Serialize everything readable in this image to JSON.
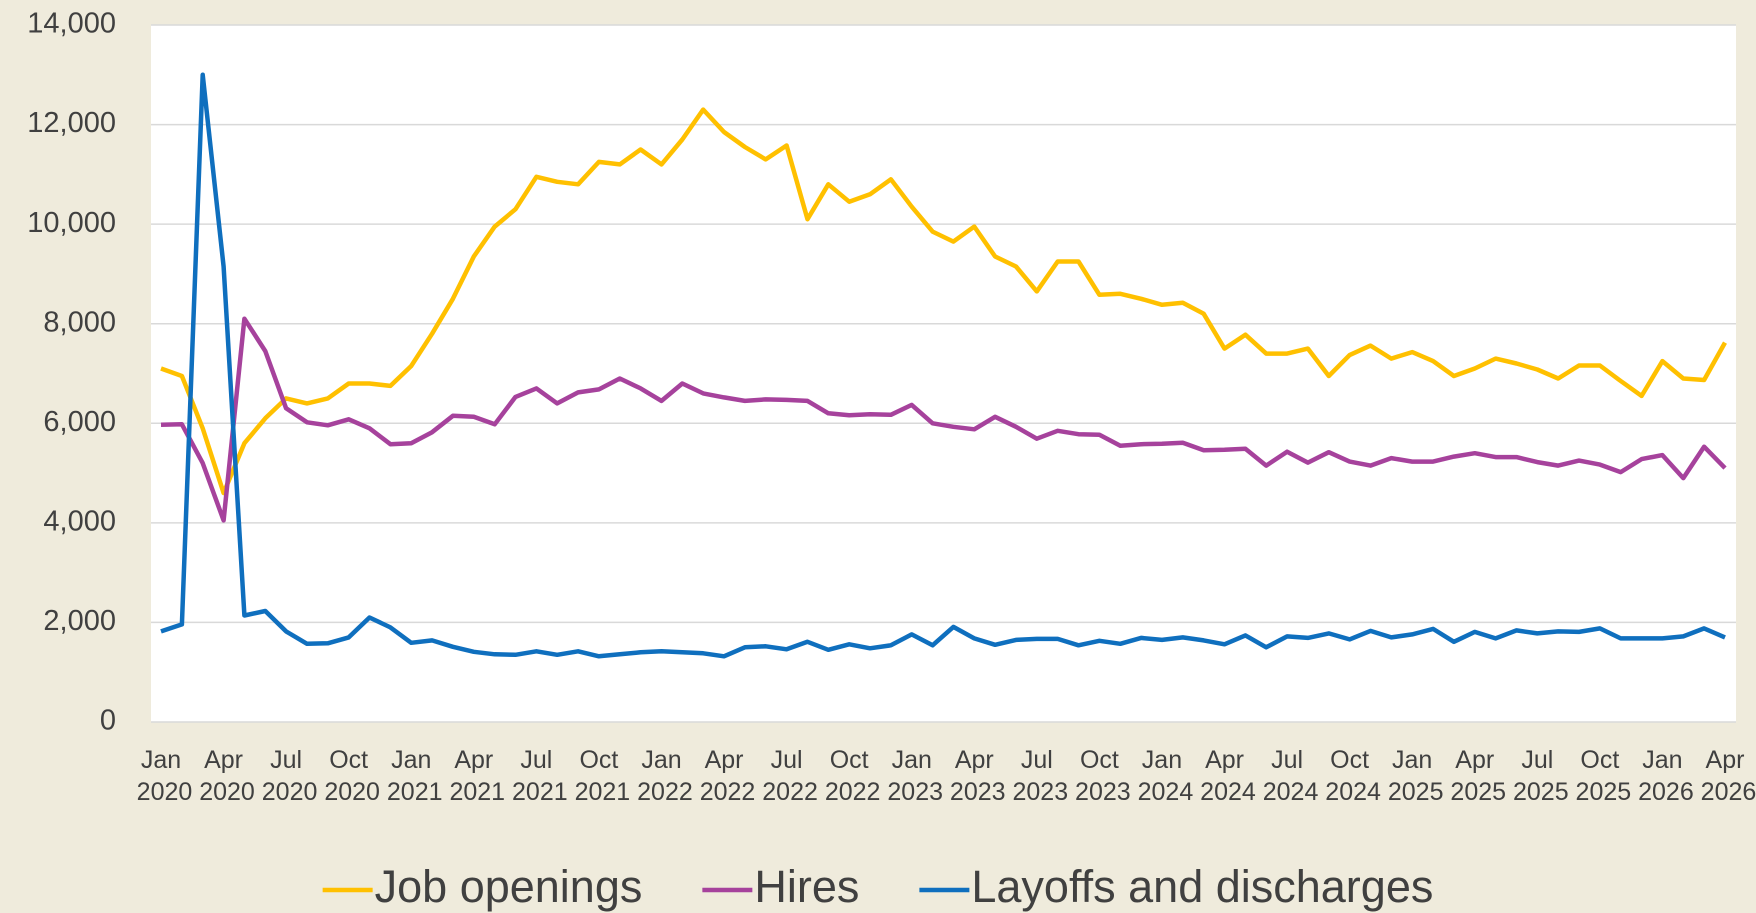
{
  "chart_data": {
    "type": "line",
    "categories": [
      "Jan 2020",
      null,
      null,
      "Apr 2020",
      null,
      null,
      "Jul 2020",
      null,
      null,
      "Oct 2020",
      null,
      null,
      "Jan 2021",
      null,
      null,
      "Apr 2021",
      null,
      null,
      "Jul 2021",
      null,
      null,
      "Oct 2021",
      null,
      null,
      "Jan 2022",
      null,
      null,
      "Apr 2022",
      null,
      null,
      "Jul 2022",
      null,
      null,
      "Oct 2022",
      null,
      null,
      "Jan 2023",
      null,
      null,
      "Apr 2023",
      null,
      null,
      "Jul 2023",
      null,
      null,
      "Oct 2023",
      null,
      null,
      "Jan 2024",
      null,
      null,
      "Apr 2024",
      null,
      null,
      "Jul 2024",
      null,
      null,
      "Oct 2024",
      null,
      null,
      "Jan 2025",
      null,
      null,
      "Apr 2025",
      null,
      null,
      "Jul 2025",
      null,
      null,
      "Oct 2025",
      null,
      null,
      "Jan 2026",
      null,
      null,
      "Apr 2026"
    ],
    "series": [
      {
        "name": "Job openings",
        "color": "#ffc000",
        "values": [
          7100,
          6950,
          5900,
          4600,
          5600,
          6100,
          6500,
          6400,
          6500,
          6800,
          6800,
          6750,
          7150,
          7800,
          8500,
          9350,
          9950,
          10300,
          10950,
          10850,
          10800,
          11250,
          11200,
          11500,
          11200,
          11700,
          12300,
          11850,
          11550,
          11300,
          11580,
          10100,
          10800,
          10450,
          10600,
          10900,
          10350,
          9850,
          9650,
          9950,
          9350,
          9150,
          8650,
          9250,
          9250,
          8580,
          8600,
          8500,
          8380,
          8420,
          8200,
          7500,
          7780,
          7400,
          7400,
          7500,
          6950,
          7370,
          7560,
          7300,
          7430,
          7250,
          6950,
          7100,
          7300,
          7200,
          7080,
          6900,
          7160,
          7160,
          6850,
          6550,
          7250,
          6900,
          6870,
          7620
        ]
      },
      {
        "name": "Hires",
        "color": "#a6429c",
        "values": [
          5970,
          5980,
          5200,
          4050,
          8100,
          7450,
          6300,
          6020,
          5960,
          6080,
          5900,
          5580,
          5600,
          5820,
          6150,
          6130,
          5980,
          6530,
          6700,
          6400,
          6620,
          6680,
          6900,
          6700,
          6450,
          6800,
          6600,
          6520,
          6450,
          6480,
          6470,
          6450,
          6200,
          6160,
          6180,
          6170,
          6370,
          6000,
          5930,
          5880,
          6130,
          5930,
          5690,
          5850,
          5780,
          5770,
          5550,
          5580,
          5590,
          5610,
          5460,
          5470,
          5490,
          5150,
          5430,
          5210,
          5420,
          5230,
          5150,
          5300,
          5230,
          5230,
          5330,
          5400,
          5320,
          5320,
          5220,
          5150,
          5250,
          5170,
          5020,
          5280,
          5360,
          4900,
          5530,
          5100
        ]
      },
      {
        "name": "Layoffs and discharges",
        "color": "#0f6fbe",
        "values": [
          1820,
          1960,
          13000,
          9150,
          2140,
          2230,
          1820,
          1570,
          1580,
          1700,
          2100,
          1900,
          1590,
          1640,
          1510,
          1410,
          1360,
          1350,
          1420,
          1350,
          1420,
          1320,
          1360,
          1400,
          1420,
          1400,
          1380,
          1320,
          1500,
          1520,
          1460,
          1610,
          1450,
          1560,
          1480,
          1540,
          1760,
          1540,
          1910,
          1680,
          1550,
          1650,
          1670,
          1670,
          1540,
          1630,
          1570,
          1690,
          1650,
          1700,
          1640,
          1560,
          1740,
          1500,
          1720,
          1690,
          1780,
          1660,
          1830,
          1700,
          1760,
          1870,
          1610,
          1810,
          1680,
          1840,
          1780,
          1820,
          1810,
          1880,
          1680,
          1680,
          1680,
          1720,
          1880,
          1700
        ]
      }
    ],
    "ylim": [
      0,
      14000
    ],
    "yticks": [
      0,
      {
        "value": 2000,
        "label": "2,000"
      },
      {
        "value": 4000,
        "label": "4,000"
      },
      {
        "value": 6000,
        "label": "6,000"
      },
      {
        "value": 8000,
        "label": "8,000"
      },
      {
        "value": 10000,
        "label": "10,000"
      },
      {
        "value": 12000,
        "label": "12,000"
      },
      {
        "value": 14000,
        "label": "14,000"
      }
    ],
    "grid": true,
    "legend": "bottom"
  }
}
